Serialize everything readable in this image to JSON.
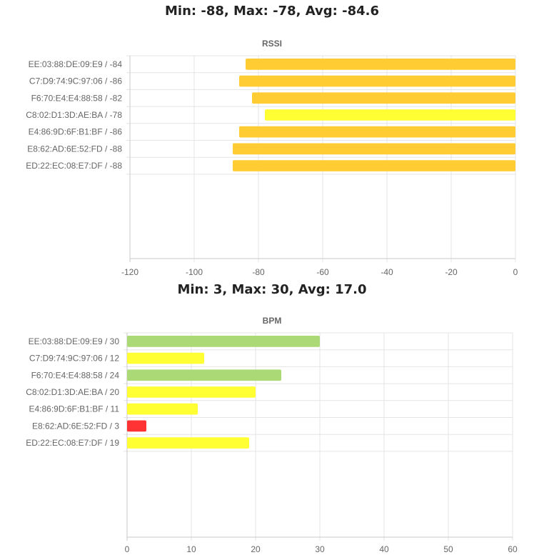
{
  "chart_data": [
    {
      "type": "bar",
      "orientation": "horizontal",
      "summary": "Min: -88, Max: -78, Avg: -84.6",
      "title": "RSSI",
      "categories": [
        "EE:03:88:DE:09:E9 / -84",
        "C7:D9:74:9C:97:06 / -86",
        "F6:70:E4:E4:88:58 / -82",
        "C8:02:D1:3D:AE:BA / -78",
        "E4:86:9D:6F:B1:BF / -86",
        "E8:62:AD:6E:52:FD / -88",
        "ED:22:EC:08:E7:DF / -88"
      ],
      "values": [
        -84,
        -86,
        -82,
        -78,
        -86,
        -88,
        -88
      ],
      "bar_colors": [
        "#ffcc33",
        "#ffcc33",
        "#ffcc33",
        "#ffff33",
        "#ffcc33",
        "#ffcc33",
        "#ffcc33"
      ],
      "xlim": [
        -120,
        0
      ],
      "xticks": [
        -120,
        -100,
        -80,
        -60,
        -40,
        -20,
        0
      ],
      "grid": true,
      "legend": "none"
    },
    {
      "type": "bar",
      "orientation": "horizontal",
      "summary": "Min: 3, Max: 30, Avg: 17.0",
      "title": "BPM",
      "categories": [
        "EE:03:88:DE:09:E9 / 30",
        "C7:D9:74:9C:97:06 / 12",
        "F6:70:E4:E4:88:58 / 24",
        "C8:02:D1:3D:AE:BA / 20",
        "E4:86:9D:6F:B1:BF / 11",
        "E8:62:AD:6E:52:FD / 3",
        "ED:22:EC:08:E7:DF / 19"
      ],
      "values": [
        30,
        12,
        24,
        20,
        11,
        3,
        19
      ],
      "bar_colors": [
        "#aad975",
        "#ffff33",
        "#aad975",
        "#ffff33",
        "#ffff33",
        "#ff3333",
        "#ffff33"
      ],
      "xlim": [
        0,
        60
      ],
      "xticks": [
        0,
        10,
        20,
        30,
        40,
        50,
        60
      ],
      "grid": true,
      "legend": "none"
    }
  ]
}
